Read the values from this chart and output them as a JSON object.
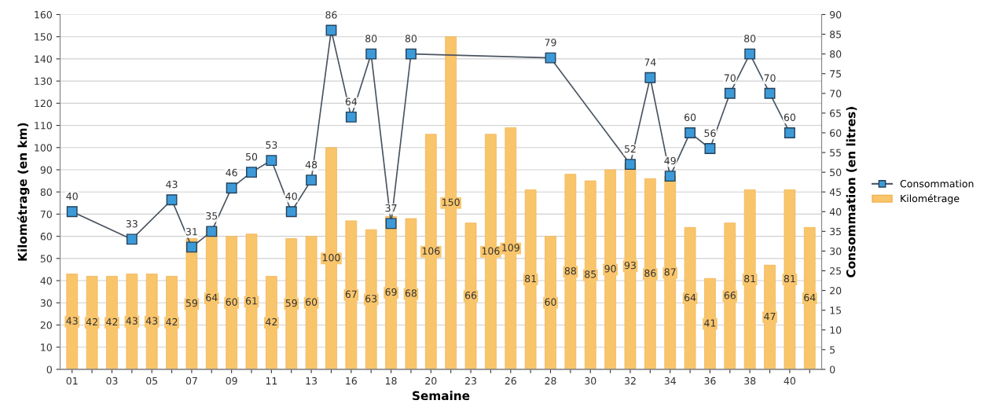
{
  "chart_data": {
    "type": "bar",
    "xlabel": "Semaine",
    "ylabel": "Kilométrage (en km)",
    "y2label": "Consommation (en litres)",
    "categories": [
      "01",
      null,
      "03",
      null,
      "05",
      null,
      "07",
      null,
      "09",
      null,
      "11",
      null,
      "13",
      null,
      "16",
      null,
      "18",
      null,
      "20",
      null,
      "23",
      null,
      "26",
      null,
      "28",
      null,
      "30",
      null,
      "32",
      null,
      "34",
      null,
      "36",
      null,
      "38",
      null,
      "40",
      null
    ],
    "series": [
      {
        "name": "Consommation",
        "type": "line",
        "axis": "y2",
        "color": "#3d9ad8",
        "marker": "square",
        "line_style": "solid",
        "values": [
          40,
          null,
          null,
          33,
          null,
          43,
          31,
          35,
          46,
          50,
          53,
          40,
          48,
          86,
          64,
          80,
          37,
          80,
          null,
          null,
          null,
          null,
          null,
          null,
          79,
          null,
          null,
          null,
          52,
          74,
          49,
          60,
          56,
          70,
          80,
          70,
          60,
          null
        ]
      },
      {
        "name": "Kilométrage",
        "color": "#f9c56b",
        "values": [
          43,
          42,
          42,
          43,
          43,
          42,
          59,
          64,
          60,
          61,
          42,
          59,
          60,
          100,
          67,
          63,
          69,
          68,
          106,
          150,
          66,
          106,
          109,
          81,
          60,
          88,
          85,
          90,
          93,
          86,
          87,
          64,
          41,
          66,
          81,
          47,
          81,
          64
        ]
      }
    ],
    "ylim": [
      0,
      160
    ],
    "yticks": [
      0,
      10,
      20,
      30,
      40,
      50,
      60,
      70,
      80,
      90,
      100,
      110,
      120,
      130,
      140,
      150,
      160
    ],
    "y2lim": [
      0,
      90
    ],
    "y2ticks": [
      0,
      5,
      10,
      15,
      20,
      25,
      30,
      35,
      40,
      45,
      50,
      55,
      60,
      65,
      70,
      75,
      80,
      85,
      90
    ],
    "grid": "y",
    "legend": "right",
    "data_labels": true
  }
}
